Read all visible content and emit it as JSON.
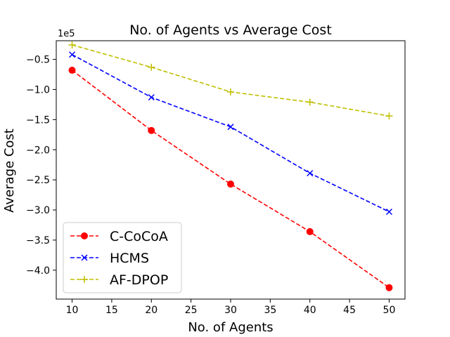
{
  "chart_data": {
    "type": "line",
    "title": "No. of Agents vs Average Cost",
    "xlabel": "No. of Agents",
    "ylabel": "Average Cost",
    "y_offset_label": "1e5",
    "x": [
      10,
      20,
      30,
      40,
      50
    ],
    "xlim": [
      8,
      52
    ],
    "ylim": [
      -4.48,
      -0.19
    ],
    "xticks": [
      10,
      15,
      20,
      25,
      30,
      35,
      40,
      45,
      50
    ],
    "yticks": [
      -0.5,
      -1.0,
      -1.5,
      -2.0,
      -2.5,
      -3.0,
      -3.5,
      -4.0
    ],
    "ytick_labels": [
      "−0.5",
      "−1.0",
      "−1.5",
      "−2.0",
      "−2.5",
      "−3.0",
      "−3.5",
      "−4.0"
    ],
    "grid": false,
    "legend_position": "bottom-left",
    "series": [
      {
        "name": "C-CoCoA",
        "values": [
          -0.68,
          -1.68,
          -2.57,
          -3.36,
          -4.29
        ],
        "color": "#ff0000",
        "marker": "circle",
        "line": "dashed"
      },
      {
        "name": "HCMS",
        "values": [
          -0.42,
          -1.13,
          -1.62,
          -2.39,
          -3.03
        ],
        "color": "#0000ff",
        "marker": "x",
        "line": "dashed"
      },
      {
        "name": "AF-DPOP",
        "values": [
          -0.26,
          -0.63,
          -1.04,
          -1.21,
          -1.44
        ],
        "color": "#bfbf00",
        "marker": "plus",
        "line": "dashed"
      }
    ]
  }
}
